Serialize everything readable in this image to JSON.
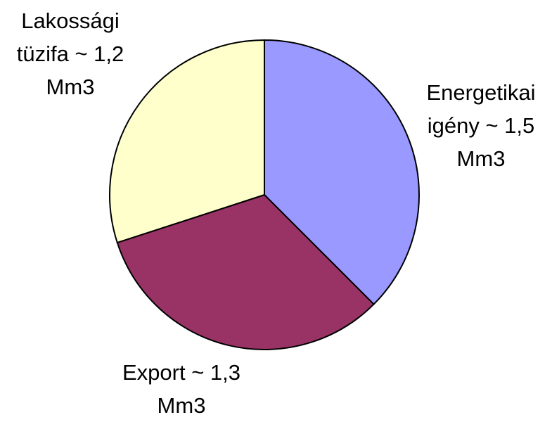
{
  "chart_data": {
    "type": "pie",
    "categories": [
      "Energetikai igény",
      "Export",
      "Lakossági tüzifa"
    ],
    "values": [
      1.5,
      1.3,
      1.2
    ],
    "value_labels": [
      "~ 1,5 Mm3",
      "~ 1,3 Mm3",
      "~ 1,2 Mm3"
    ],
    "colors": [
      "#9999ff",
      "#993366",
      "#ffffcc"
    ]
  }
}
